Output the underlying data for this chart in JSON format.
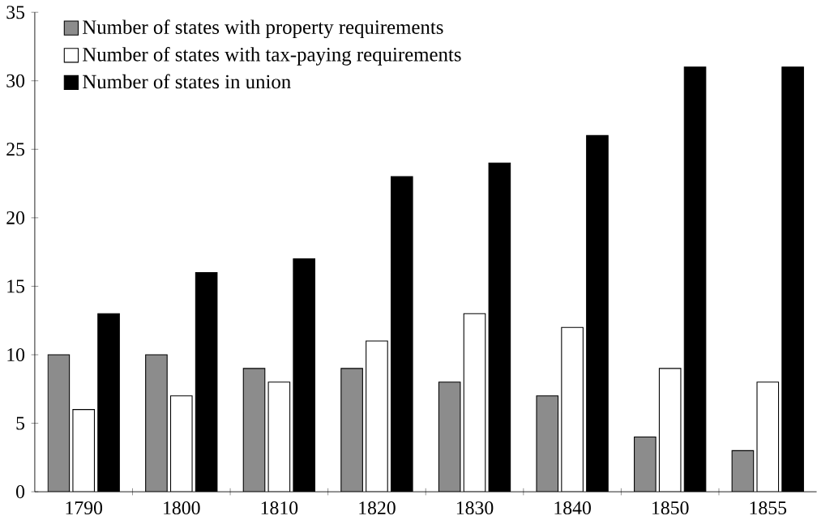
{
  "chart_data": {
    "type": "bar",
    "categories": [
      "1790",
      "1800",
      "1810",
      "1820",
      "1830",
      "1840",
      "1850",
      "1855"
    ],
    "series": [
      {
        "name": "Number of states with property requirements",
        "color": "#8c8c8c",
        "values": [
          10,
          10,
          9,
          9,
          8,
          7,
          4,
          3
        ]
      },
      {
        "name": "Number of states with tax-paying requirements",
        "color": "#ffffff",
        "values": [
          6,
          7,
          8,
          11,
          13,
          12,
          9,
          8
        ]
      },
      {
        "name": "Number of states in union",
        "color": "#000000",
        "values": [
          13,
          16,
          17,
          23,
          24,
          26,
          31,
          31
        ]
      }
    ],
    "ylim": [
      0,
      35
    ],
    "yticks": [
      0,
      5,
      10,
      15,
      20,
      25,
      30,
      35
    ],
    "grid": false,
    "legend": "top left"
  }
}
